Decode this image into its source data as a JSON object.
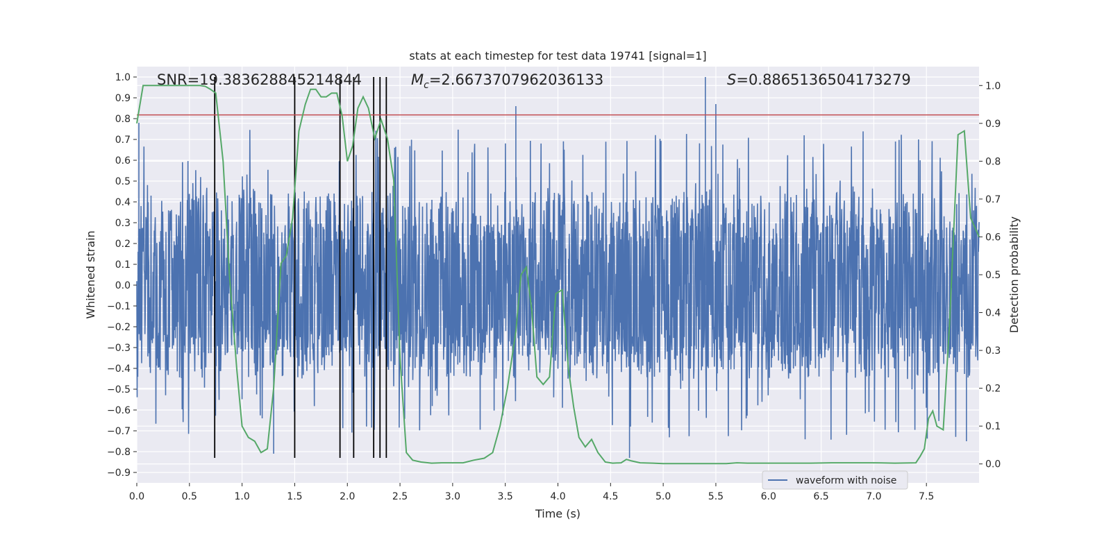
{
  "chart_data": {
    "type": "line",
    "title": "stats at each timestep for test data 19741 [signal=1]",
    "xlabel": "Time (s)",
    "ylabel_left": "Whitened strain",
    "ylabel_right": "Detection probability",
    "xlim": [
      0.0,
      8.0
    ],
    "ylim_left": [
      -0.95,
      1.05
    ],
    "ylim_right": [
      -0.05,
      1.05
    ],
    "x_ticks": [
      "0.0",
      "0.5",
      "1.0",
      "1.5",
      "2.0",
      "2.5",
      "3.0",
      "3.5",
      "4.0",
      "4.5",
      "5.0",
      "5.5",
      "6.0",
      "6.5",
      "7.0",
      "7.5"
    ],
    "y_ticks_left": [
      "1.0",
      "0.9",
      "0.8",
      "0.7",
      "0.6",
      "0.5",
      "0.4",
      "0.3",
      "0.2",
      "0.1",
      "0.0",
      "−0.1",
      "−0.2",
      "−0.3",
      "−0.4",
      "−0.5",
      "−0.6",
      "−0.7",
      "−0.8",
      "−0.9"
    ],
    "y_ticks_right": [
      "1.0",
      "0.9",
      "0.8",
      "0.7",
      "0.6",
      "0.5",
      "0.4",
      "0.3",
      "0.2",
      "0.1",
      "0.0"
    ],
    "annotations": {
      "snr": "SNR=19.383628845214844",
      "mc_symbol": "M",
      "mc_sub": "c",
      "mc_value": "=2.6673707962036133",
      "s_symbol": "S",
      "s_value": "=0.8865136504173279"
    },
    "threshold": {
      "value_left_axis": 0.818,
      "color": "#c44e52"
    },
    "vertical_markers": [
      0.74,
      1.5,
      1.93,
      2.06,
      2.25,
      2.31,
      2.37
    ],
    "vertical_marker_range": [
      -0.83,
      1.0
    ],
    "series": [
      {
        "name": "waveform with noise",
        "axis": "left",
        "color": "#4c72b0",
        "kind": "noise",
        "typical_envelope": [
          -0.35,
          0.3
        ],
        "peak_range": [
          -0.83,
          1.0
        ]
      },
      {
        "name": "detection probability",
        "axis": "right",
        "color": "#55a868",
        "x": [
          0.0,
          0.06,
          0.12,
          0.2,
          0.3,
          0.4,
          0.5,
          0.6,
          0.65,
          0.7,
          0.75,
          0.82,
          0.88,
          0.95,
          1.0,
          1.06,
          1.12,
          1.18,
          1.24,
          1.3,
          1.37,
          1.42,
          1.48,
          1.54,
          1.6,
          1.65,
          1.7,
          1.75,
          1.8,
          1.85,
          1.9,
          1.95,
          2.0,
          2.05,
          2.1,
          2.15,
          2.2,
          2.26,
          2.32,
          2.38,
          2.44,
          2.5,
          2.56,
          2.62,
          2.7,
          2.8,
          2.9,
          3.0,
          3.1,
          3.2,
          3.3,
          3.38,
          3.45,
          3.52,
          3.6,
          3.65,
          3.7,
          3.75,
          3.8,
          3.86,
          3.92,
          3.98,
          4.04,
          4.1,
          4.15,
          4.2,
          4.26,
          4.32,
          4.38,
          4.45,
          4.52,
          4.6,
          4.65,
          4.7,
          4.78,
          4.9,
          5.0,
          5.2,
          5.4,
          5.6,
          5.7,
          5.8,
          6.0,
          6.2,
          6.4,
          6.6,
          6.8,
          7.0,
          7.2,
          7.4,
          7.44,
          7.48,
          7.52,
          7.56,
          7.6,
          7.66,
          7.72,
          7.8,
          7.86,
          7.92,
          8.0
        ],
        "values": [
          0.9,
          1.0,
          1.0,
          1.0,
          1.0,
          1.0,
          1.0,
          1.0,
          0.998,
          0.99,
          0.98,
          0.8,
          0.5,
          0.25,
          0.1,
          0.07,
          0.06,
          0.03,
          0.04,
          0.2,
          0.53,
          0.55,
          0.65,
          0.88,
          0.95,
          0.99,
          0.99,
          0.97,
          0.97,
          0.98,
          0.98,
          0.92,
          0.8,
          0.84,
          0.94,
          0.97,
          0.94,
          0.86,
          0.91,
          0.86,
          0.75,
          0.28,
          0.03,
          0.01,
          0.005,
          0.002,
          0.003,
          0.003,
          0.003,
          0.01,
          0.015,
          0.03,
          0.1,
          0.2,
          0.35,
          0.5,
          0.52,
          0.41,
          0.23,
          0.21,
          0.23,
          0.45,
          0.46,
          0.25,
          0.15,
          0.07,
          0.045,
          0.065,
          0.03,
          0.005,
          0.002,
          0.003,
          0.012,
          0.008,
          0.003,
          0.002,
          0.001,
          0.001,
          0.001,
          0.001,
          0.003,
          0.002,
          0.002,
          0.002,
          0.002,
          0.003,
          0.003,
          0.003,
          0.002,
          0.003,
          0.02,
          0.04,
          0.12,
          0.14,
          0.1,
          0.09,
          0.37,
          0.87,
          0.88,
          0.65,
          0.6
        ]
      }
    ],
    "legend": {
      "entries": [
        "waveform with noise"
      ],
      "placement": "bottom-right"
    },
    "grid": true,
    "colors": {
      "background": "#eaeaf2",
      "grid": "#ffffff",
      "markers": "#000000"
    }
  }
}
